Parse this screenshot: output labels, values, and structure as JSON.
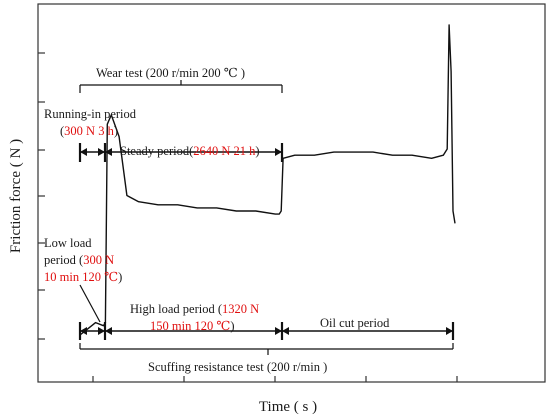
{
  "chart_data": {
    "type": "line",
    "title": "",
    "xlabel": "Time ( s )",
    "ylabel": "Friction force ( N )",
    "x_tick_labels": [],
    "y_tick_labels": [],
    "grid": false,
    "series": [
      {
        "x": [
          0.0,
          0.02,
          0.04,
          0.06,
          0.065,
          0.07,
          0.08,
          0.1,
          0.12,
          0.15,
          0.2,
          0.25,
          0.3,
          0.35,
          0.4,
          0.45,
          0.5,
          0.51,
          0.515,
          0.52,
          0.55,
          0.6,
          0.65,
          0.7,
          0.75,
          0.8,
          0.85,
          0.9,
          0.93,
          0.94,
          0.945,
          0.95,
          0.955,
          0.96
        ],
        "y": [
          0.0,
          0.02,
          0.04,
          0.03,
          0.04,
          0.68,
          0.71,
          0.64,
          0.45,
          0.43,
          0.42,
          0.42,
          0.41,
          0.41,
          0.4,
          0.4,
          0.39,
          0.39,
          0.4,
          0.57,
          0.58,
          0.58,
          0.59,
          0.59,
          0.59,
          0.58,
          0.58,
          0.57,
          0.58,
          0.6,
          1.0,
          0.85,
          0.4,
          0.36
        ]
      }
    ],
    "annotations": {
      "wear_test": "Wear  test (200 r/min 200 ℃ )",
      "running_in_label": "Running-in period",
      "running_in_values": "(300 N 3 h)",
      "steady_label": "Steady period",
      "steady_values": "2640 N 21 h",
      "low_load_line1": "Low load",
      "low_load_line2_prefix": "period (",
      "low_load_line2_red": "300 N",
      "low_load_line3": "10 min 120 ℃",
      "high_load_label": "High load period (",
      "high_load_values_1": "1320 N",
      "high_load_values_2": "150 min 120 ℃",
      "oil_cut": "Oil cut period",
      "scuffing": "Scuffing resistance test (200 r/min )"
    },
    "colors": {
      "trace": "#111111",
      "highlight": "#e01010"
    }
  }
}
